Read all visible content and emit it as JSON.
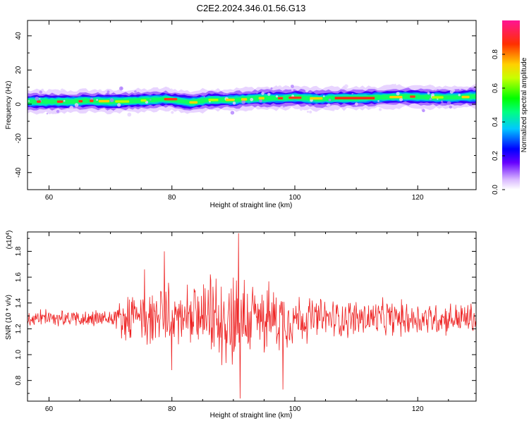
{
  "title": "C2E2.2024.346.01.56.G13",
  "colors": {
    "snr_line": "#ee2222"
  },
  "chart_data": [
    {
      "type": "heatmap",
      "xlabel": "Height of straight line (km)",
      "ylabel": "Frequency (Hz)",
      "xlim": [
        56.5,
        129.5
      ],
      "ylim": [
        -50,
        49
      ],
      "x_ticks": [
        "60",
        "80",
        "100",
        "120"
      ],
      "y_ticks": [
        "40",
        "20",
        "0",
        "-20",
        "-40"
      ],
      "colorbar": {
        "label": "Normalized spectral amplitude",
        "range": [
          0,
          1
        ],
        "ticks": [
          "0.0",
          "0.2",
          "0.4",
          "0.6",
          "0.8"
        ]
      },
      "ridge": {
        "x": [
          57,
          60,
          64,
          66,
          70,
          74,
          77,
          79,
          81,
          83,
          86,
          90,
          94,
          98,
          100,
          104,
          106,
          110,
          114,
          118,
          122,
          126,
          129
        ],
        "y": [
          1.5,
          1.5,
          1.5,
          2,
          1.5,
          2,
          2.5,
          3,
          2,
          1,
          2.5,
          2.5,
          3.5,
          3.5,
          4,
          3,
          3.5,
          3.5,
          4,
          4.5,
          4,
          4,
          4.5
        ]
      }
    },
    {
      "type": "line",
      "xlabel": "Height of straight line (km)",
      "ylabel": "SNR (10 * v/v)",
      "y_multiplier": "(x10",
      "y_multiplier_exp": "4",
      "y_multiplier_close": ")",
      "xlim": [
        56.5,
        129.5
      ],
      "ylim": [
        0.64,
        1.95
      ],
      "x_ticks": [
        "60",
        "80",
        "100",
        "120"
      ],
      "y_ticks": [
        "0.8",
        "1.0",
        "1.2",
        "1.4",
        "1.6",
        "1.8"
      ],
      "series": [
        {
          "baseline": 1.28,
          "envelope_x": [
            56.5,
            60,
            65,
            70,
            72,
            75,
            78,
            80,
            82,
            85,
            88,
            90,
            92,
            95,
            98,
            100,
            105,
            110,
            115,
            120,
            125,
            129.5
          ],
          "envelope_half_width": [
            0.08,
            0.08,
            0.08,
            0.1,
            0.18,
            0.24,
            0.3,
            0.32,
            0.26,
            0.3,
            0.42,
            0.5,
            0.4,
            0.32,
            0.3,
            0.24,
            0.18,
            0.18,
            0.17,
            0.16,
            0.15,
            0.15
          ],
          "peaks_x": [
            75.5,
            78.8,
            80.0,
            90.8,
            91.1,
            98.1
          ],
          "peaks_y": [
            1.66,
            1.8,
            0.88,
            1.94,
            0.66,
            0.73
          ]
        }
      ]
    }
  ]
}
